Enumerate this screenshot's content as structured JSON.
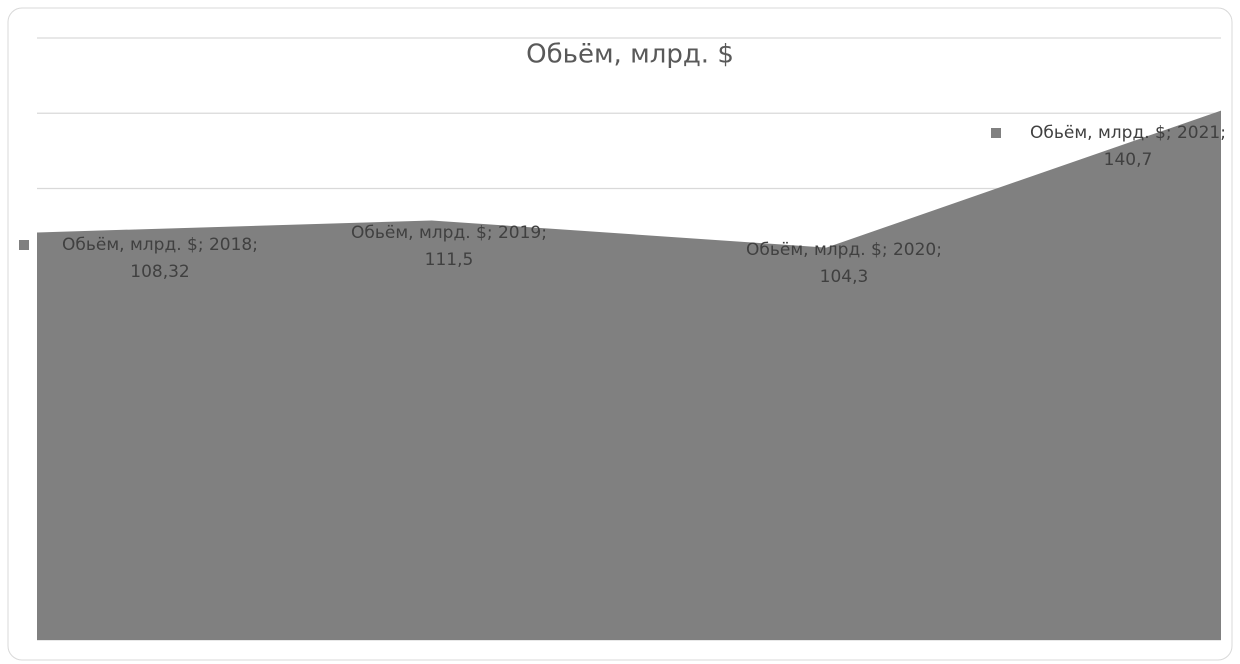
{
  "chart_data": {
    "type": "area",
    "title": "Обьём, млрд. $",
    "categories": [
      "2018",
      "2019",
      "2020",
      "2021"
    ],
    "series": [
      {
        "name": "Обьём, млрд. $",
        "color": "#808080",
        "values": [
          108.32,
          111.5,
          104.3,
          140.7
        ],
        "value_labels": [
          "108,32",
          "111,5",
          "104,3",
          "140,7"
        ]
      }
    ],
    "ylim": [
      0,
      160
    ],
    "yticks": [
      0,
      20,
      40,
      60,
      80,
      100,
      120,
      140,
      160
    ],
    "grid": true
  }
}
